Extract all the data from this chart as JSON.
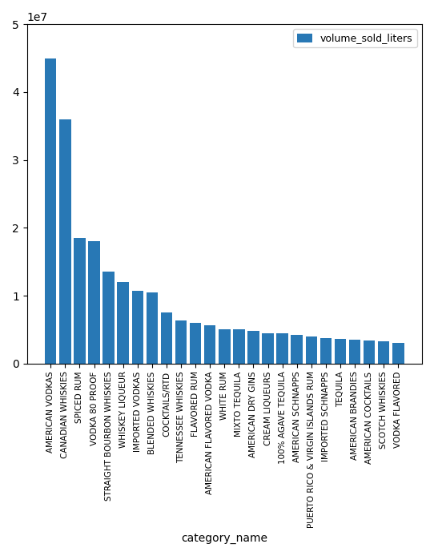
{
  "categories": [
    "AMERICAN VODKAS",
    "CANADIAN WHISKIES",
    "SPICED RUM",
    "VODKA 80 PROOF",
    "STRAIGHT BOURBON WHISKIES",
    "WHISKEY LIQUEUR",
    "IMPORTED VODKAS",
    "BLENDED WHISKIES",
    "COCKTAILS/RTD",
    "TENNESSEE WHISKIES",
    "FLAVORED RUM",
    "AMERICAN FLAVORED VODKA",
    "WHITE RUM",
    "MIXTO TEQUILA",
    "AMERICAN DRY GINS",
    "CREAM LIQUEURS",
    "100% AGAVE TEQUILA",
    "AMERICAN SCHNAPPS",
    "PUERTO RICO & VIRGIN ISLANDS RUM",
    "IMPORTED SCHNAPPS",
    "TEQUILA",
    "AMERICAN BRANDIES",
    "AMERICAN COCKTAILS",
    "SCOTCH WHISKIES",
    "VODKA FLAVORED"
  ],
  "values": [
    45000000,
    36000000,
    18500000,
    18000000,
    13500000,
    12000000,
    10700000,
    10500000,
    7500000,
    6400000,
    6000000,
    5600000,
    5000000,
    5000000,
    4800000,
    4500000,
    4400000,
    4200000,
    4000000,
    3800000,
    3600000,
    3500000,
    3400000,
    3300000,
    3000000
  ],
  "bar_color": "#2878b5",
  "xlabel": "category_name",
  "legend_label": "volume_sold_liters",
  "ylim": [
    0,
    50000000
  ]
}
